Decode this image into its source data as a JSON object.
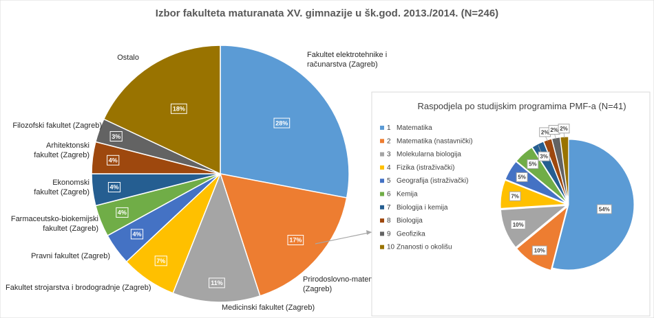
{
  "chart_data": [
    {
      "type": "pie",
      "title": "Izbor fakulteta maturanata XV. gimnazije u šk.god. 2013./2014. (N=246)",
      "slices": [
        {
          "label": "Fakultet elektrotehnike i računarstva (Zagreb)",
          "value": 28,
          "value_label": "28%",
          "color": "#5B9BD5"
        },
        {
          "label": "Prirodoslovno-matematički fakultet (Zagreb)",
          "value": 17,
          "value_label": "17%",
          "color": "#ED7D31"
        },
        {
          "label": "Medicinski fakultet (Zagreb)",
          "value": 11,
          "value_label": "11%",
          "color": "#A5A5A5"
        },
        {
          "label": "Fakultet strojarstva i brodogradnje (Zagreb)",
          "value": 7,
          "value_label": "7%",
          "color": "#FFC000"
        },
        {
          "label": "Pravni fakultet (Zagreb)",
          "value": 4,
          "value_label": "4%",
          "color": "#4472C4"
        },
        {
          "label": "Farmaceutsko-biokemijski fakultet (Zagreb)",
          "value": 4,
          "value_label": "4%",
          "color": "#70AD47"
        },
        {
          "label": "Ekonomski fakultet (Zagreb)",
          "value": 4,
          "value_label": "4%",
          "color": "#255E91"
        },
        {
          "label": "Arhitektonski fakultet (Zagreb)",
          "value": 4,
          "value_label": "4%",
          "color": "#9E480E"
        },
        {
          "label": "Filozofski fakultet (Zagreb)",
          "value": 3,
          "value_label": "3%",
          "color": "#636363"
        },
        {
          "label": "Ostalo",
          "value": 18,
          "value_label": "18%",
          "color": "#997300"
        }
      ]
    },
    {
      "type": "pie",
      "title": "Raspodjela po studijskim programima PMF-a (N=41)",
      "legend_position": "left",
      "slices": [
        {
          "num": "1",
          "label": "Matematika",
          "value": 54,
          "value_label": "54%",
          "color": "#5B9BD5"
        },
        {
          "num": "2",
          "label": "Matematika (nastavnički)",
          "value": 10,
          "value_label": "10%",
          "color": "#ED7D31"
        },
        {
          "num": "3",
          "label": "Molekularna biologija",
          "value": 10,
          "value_label": "10%",
          "color": "#A5A5A5"
        },
        {
          "num": "4",
          "label": "Fizika (istraživački)",
          "value": 7,
          "value_label": "7%",
          "color": "#FFC000"
        },
        {
          "num": "5",
          "label": "Geografija (istraživački)",
          "value": 5,
          "value_label": "5%",
          "color": "#4472C4"
        },
        {
          "num": "6",
          "label": "Kemija",
          "value": 5,
          "value_label": "5%",
          "color": "#70AD47"
        },
        {
          "num": "7",
          "label": "Biologija i kemija",
          "value": 3,
          "value_label": "3%",
          "color": "#255E91"
        },
        {
          "num": "8",
          "label": "Biologija",
          "value": 2,
          "value_label": "2%",
          "color": "#9E480E"
        },
        {
          "num": "9",
          "label": "Geofizika",
          "value": 2,
          "value_label": "2%",
          "color": "#636363"
        },
        {
          "num": "10",
          "label": "Znanosti o okolišu",
          "value": 2,
          "value_label": "2%",
          "color": "#997300"
        }
      ]
    }
  ]
}
